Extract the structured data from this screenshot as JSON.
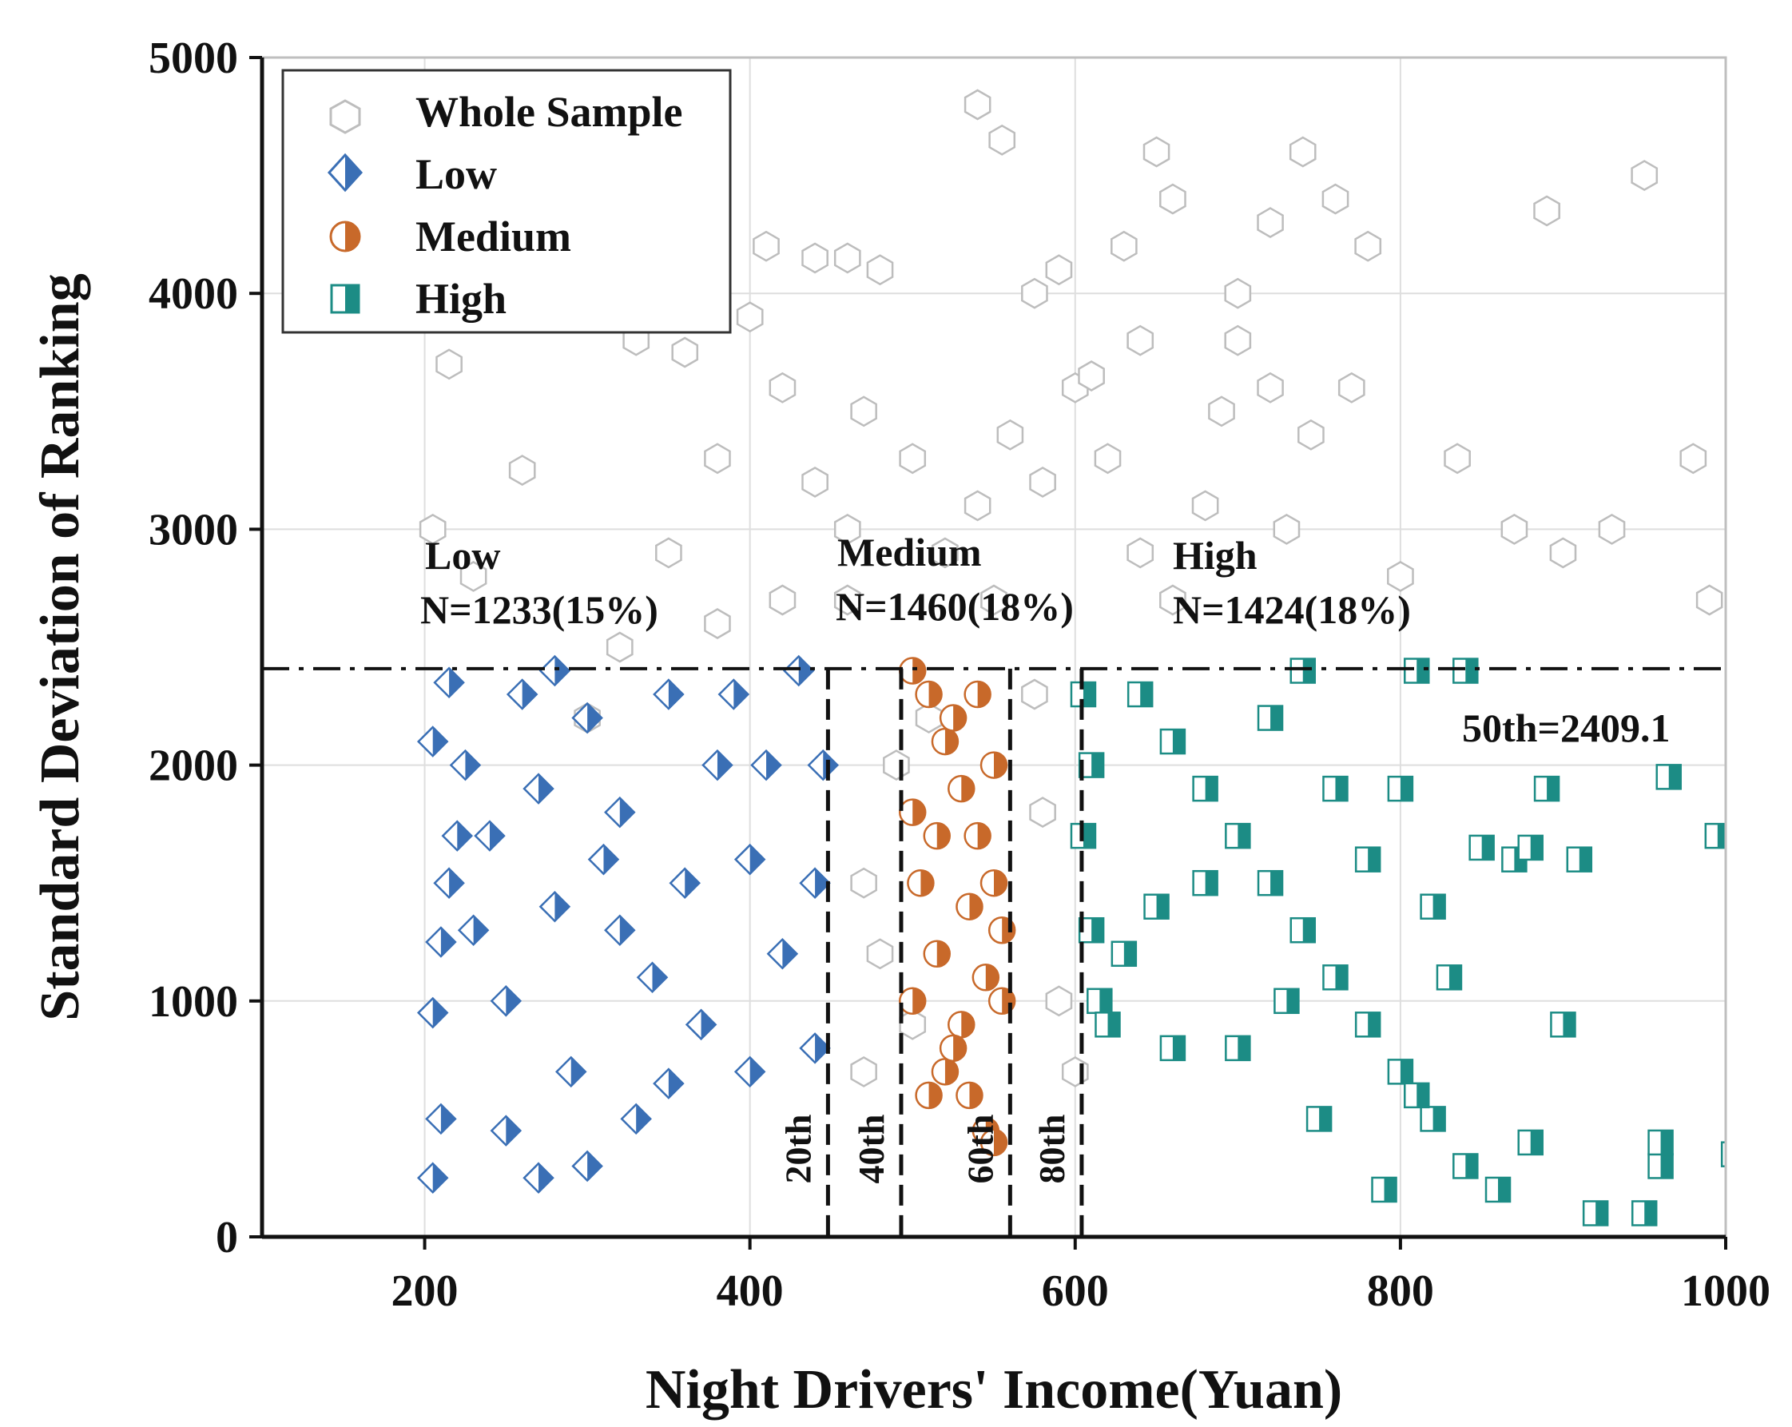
{
  "chart_data": {
    "type": "scatter",
    "xlabel": "Night Drivers' Income(Yuan)",
    "ylabel": "Standard Deviation of Ranking",
    "xlim": [
      100,
      1000
    ],
    "ylim": [
      0,
      5000
    ],
    "xticks": [
      200,
      400,
      600,
      800,
      1000
    ],
    "yticks": [
      0,
      1000,
      2000,
      3000,
      4000,
      5000
    ],
    "grid": true,
    "legend_position": "top-left",
    "legend": [
      {
        "name": "Whole Sample",
        "marker": "hexagon-open"
      },
      {
        "name": "Low",
        "marker": "diamond-half"
      },
      {
        "name": "Medium",
        "marker": "circle-half"
      },
      {
        "name": "High",
        "marker": "square-half"
      }
    ],
    "hline": {
      "y": 2409.1,
      "label": "50th=2409.1",
      "style": "dash-dot"
    },
    "vlines": [
      {
        "x": 448,
        "label": "20th"
      },
      {
        "x": 493,
        "label": "40th"
      },
      {
        "x": 560,
        "label": "60th"
      },
      {
        "x": 604,
        "label": "80th"
      }
    ],
    "group_annotations": [
      {
        "title": "Low",
        "count": "N=1233(15%)",
        "x": 200
      },
      {
        "title": "Medium",
        "count": "N=1460(18%)",
        "x": 455
      },
      {
        "title": "High",
        "count": "N=1424(18%)",
        "x": 660
      }
    ],
    "series": [
      {
        "name": "Whole Sample",
        "color": "#bdbdbd",
        "points": [
          [
            300,
            2200
          ],
          [
            320,
            2500
          ],
          [
            350,
            2900
          ],
          [
            380,
            3300
          ],
          [
            400,
            3900
          ],
          [
            420,
            3600
          ],
          [
            440,
            3200
          ],
          [
            460,
            3000
          ],
          [
            470,
            3500
          ],
          [
            480,
            4100
          ],
          [
            500,
            3300
          ],
          [
            520,
            2900
          ],
          [
            540,
            3100
          ],
          [
            560,
            3400
          ],
          [
            580,
            3200
          ],
          [
            600,
            3600
          ],
          [
            620,
            3300
          ],
          [
            640,
            2900
          ],
          [
            660,
            2700
          ],
          [
            680,
            3100
          ],
          [
            700,
            3800
          ],
          [
            720,
            4300
          ],
          [
            740,
            4600
          ],
          [
            760,
            4400
          ],
          [
            780,
            4200
          ],
          [
            540,
            4800
          ],
          [
            555,
            4650
          ],
          [
            650,
            4600
          ],
          [
            660,
            4400
          ],
          [
            700,
            4000
          ],
          [
            890,
            4350
          ],
          [
            950,
            4500
          ],
          [
            980,
            3300
          ],
          [
            990,
            2700
          ],
          [
            900,
            2900
          ],
          [
            930,
            3000
          ],
          [
            835,
            3300
          ],
          [
            870,
            3000
          ],
          [
            800,
            2800
          ],
          [
            770,
            3600
          ],
          [
            745,
            3400
          ],
          [
            730,
            3000
          ],
          [
            215,
            3700
          ],
          [
            260,
            3250
          ],
          [
            205,
            3000
          ],
          [
            230,
            2800
          ],
          [
            330,
            3800
          ],
          [
            360,
            3750
          ],
          [
            410,
            4200
          ],
          [
            440,
            4150
          ],
          [
            460,
            4150
          ],
          [
            575,
            4000
          ],
          [
            640,
            3800
          ],
          [
            610,
            3650
          ],
          [
            590,
            4100
          ],
          [
            630,
            4200
          ],
          [
            690,
            3500
          ],
          [
            720,
            3600
          ],
          [
            460,
            2700
          ],
          [
            470,
            1500
          ],
          [
            480,
            1200
          ],
          [
            500,
            900
          ],
          [
            510,
            2200
          ],
          [
            580,
            1800
          ],
          [
            590,
            1000
          ],
          [
            600,
            700
          ],
          [
            575,
            2300
          ],
          [
            470,
            700
          ],
          [
            490,
            2000
          ],
          [
            550,
            2700
          ],
          [
            420,
            2700
          ],
          [
            380,
            2600
          ]
        ]
      },
      {
        "name": "Low",
        "color": "#3a6fb5",
        "points": [
          [
            205,
            250
          ],
          [
            210,
            500
          ],
          [
            205,
            950
          ],
          [
            210,
            1250
          ],
          [
            205,
            2100
          ],
          [
            215,
            2350
          ],
          [
            225,
            2000
          ],
          [
            220,
            1700
          ],
          [
            215,
            1500
          ],
          [
            230,
            1300
          ],
          [
            240,
            1700
          ],
          [
            250,
            1000
          ],
          [
            260,
            2300
          ],
          [
            270,
            1900
          ],
          [
            280,
            2400
          ],
          [
            300,
            2200
          ],
          [
            320,
            1800
          ],
          [
            350,
            2300
          ],
          [
            380,
            2000
          ],
          [
            400,
            1600
          ],
          [
            420,
            1200
          ],
          [
            440,
            800
          ],
          [
            430,
            2400
          ],
          [
            400,
            700
          ],
          [
            370,
            900
          ],
          [
            330,
            500
          ],
          [
            300,
            300
          ],
          [
            270,
            250
          ],
          [
            250,
            450
          ],
          [
            340,
            1100
          ],
          [
            360,
            1500
          ],
          [
            390,
            2300
          ],
          [
            410,
            2000
          ],
          [
            280,
            1400
          ],
          [
            310,
            1600
          ],
          [
            440,
            1500
          ],
          [
            445,
            2000
          ],
          [
            290,
            700
          ],
          [
            320,
            1300
          ],
          [
            350,
            650
          ]
        ]
      },
      {
        "name": "Medium",
        "color": "#c8692a",
        "points": [
          [
            500,
            2400
          ],
          [
            510,
            2300
          ],
          [
            520,
            2100
          ],
          [
            530,
            1900
          ],
          [
            540,
            1700
          ],
          [
            550,
            1500
          ],
          [
            555,
            1300
          ],
          [
            545,
            1100
          ],
          [
            530,
            900
          ],
          [
            520,
            700
          ],
          [
            510,
            600
          ],
          [
            500,
            1800
          ],
          [
            505,
            1500
          ],
          [
            515,
            1200
          ],
          [
            525,
            800
          ],
          [
            535,
            600
          ],
          [
            545,
            450
          ],
          [
            550,
            400
          ],
          [
            555,
            1000
          ],
          [
            540,
            2300
          ],
          [
            525,
            2200
          ],
          [
            515,
            1700
          ],
          [
            500,
            1000
          ],
          [
            535,
            1400
          ],
          [
            550,
            2000
          ]
        ]
      },
      {
        "name": "High",
        "color": "#1c8c85",
        "points": [
          [
            605,
            2300
          ],
          [
            610,
            2000
          ],
          [
            605,
            1700
          ],
          [
            610,
            1300
          ],
          [
            615,
            1000
          ],
          [
            620,
            900
          ],
          [
            640,
            2300
          ],
          [
            660,
            2100
          ],
          [
            680,
            1900
          ],
          [
            700,
            1700
          ],
          [
            720,
            1500
          ],
          [
            740,
            1300
          ],
          [
            760,
            1100
          ],
          [
            780,
            900
          ],
          [
            800,
            700
          ],
          [
            820,
            500
          ],
          [
            840,
            300
          ],
          [
            860,
            200
          ],
          [
            880,
            400
          ],
          [
            900,
            900
          ],
          [
            910,
            1600
          ],
          [
            920,
            100
          ],
          [
            950,
            100
          ],
          [
            960,
            300
          ],
          [
            960,
            400
          ],
          [
            965,
            1950
          ],
          [
            995,
            1700
          ],
          [
            1005,
            350
          ],
          [
            740,
            2400
          ],
          [
            810,
            2400
          ],
          [
            840,
            2400
          ],
          [
            870,
            1600
          ],
          [
            880,
            1650
          ],
          [
            890,
            1900
          ],
          [
            850,
            1650
          ],
          [
            830,
            1100
          ],
          [
            820,
            1400
          ],
          [
            800,
            1900
          ],
          [
            780,
            1600
          ],
          [
            760,
            1900
          ],
          [
            700,
            800
          ],
          [
            680,
            1500
          ],
          [
            650,
            1400
          ],
          [
            630,
            1200
          ],
          [
            660,
            800
          ],
          [
            720,
            2200
          ],
          [
            750,
            500
          ],
          [
            790,
            200
          ],
          [
            810,
            600
          ],
          [
            730,
            1000
          ]
        ]
      }
    ]
  }
}
